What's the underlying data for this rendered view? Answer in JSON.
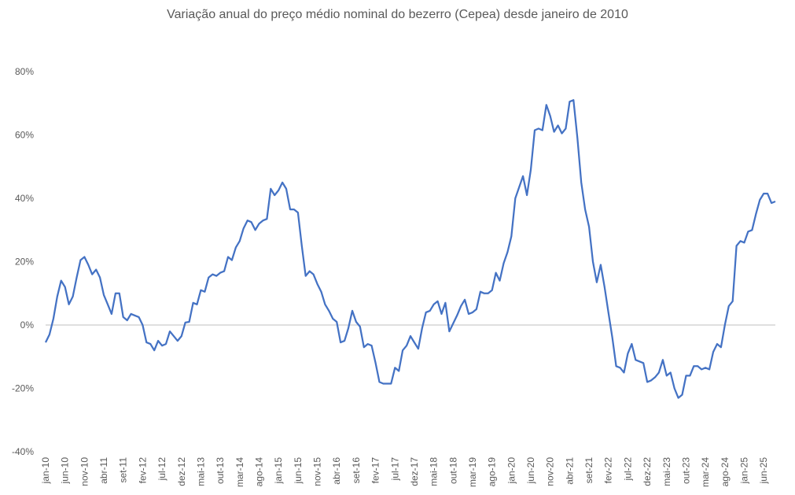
{
  "chart_data": {
    "type": "line",
    "title": "Variação anual do preço médio nominal do bezerro (Cepea) desde janeiro de 2010",
    "xlabel": "",
    "ylabel": "",
    "ylim": [
      -40,
      80
    ],
    "yticks": [
      -40,
      -20,
      0,
      20,
      40,
      60,
      80
    ],
    "ytick_labels": [
      "-40%",
      "-20%",
      "0%",
      "20%",
      "40%",
      "60%",
      "80%"
    ],
    "xtick_labels": [
      "jan-10",
      "jun-10",
      "nov-10",
      "abr-11",
      "set-11",
      "fev-12",
      "jul-12",
      "dez-12",
      "mai-13",
      "out-13",
      "mar-14",
      "ago-14",
      "jan-15",
      "jun-15",
      "nov-15",
      "abr-16",
      "set-16",
      "fev-17",
      "jul-17",
      "dez-17",
      "mai-18",
      "out-18",
      "mar-19",
      "ago-19",
      "jan-20",
      "jun-20",
      "nov-20",
      "abr-21",
      "set-21",
      "fev-22",
      "jul-22",
      "dez-22",
      "mai-23",
      "out-23",
      "mar-24",
      "ago-24",
      "jan-25",
      "jun-25"
    ],
    "grid": false,
    "line_color": "#4472C4",
    "x_start": "jan-10",
    "x_step": "month",
    "series": [
      {
        "values": [
          -5.5,
          -3,
          2,
          9,
          14,
          12,
          6.5,
          9,
          15,
          20.5,
          21.5,
          19,
          16,
          17.5,
          15,
          9.5,
          6.5,
          3.5,
          10,
          10,
          2.5,
          1.5,
          3.5,
          3,
          2.5,
          0,
          -5.5,
          -6,
          -8,
          -5,
          -6.5,
          -6,
          -2,
          -3.5,
          -5,
          -3.5,
          0.8,
          1,
          7,
          6.5,
          11,
          10.5,
          15,
          16,
          15.5,
          16.5,
          17,
          21.5,
          20.5,
          24.5,
          26.5,
          30.5,
          33,
          32.5,
          30,
          32,
          33,
          33.5,
          43,
          41,
          42.5,
          45,
          43,
          36.5,
          36.5,
          35.5,
          25,
          15.5,
          17,
          16,
          13,
          10.5,
          6.5,
          4.5,
          2,
          1,
          -5.5,
          -5,
          -1,
          4.5,
          1,
          -0.5,
          -7,
          -6,
          -6.5,
          -12,
          -18,
          -18.5,
          -18.5,
          -18.5,
          -13.5,
          -14.5,
          -8,
          -6.5,
          -3.5,
          -5.5,
          -7.5,
          -1,
          4,
          4.5,
          6.5,
          7.5,
          3.5,
          7,
          -2,
          0.5,
          3,
          6,
          8,
          3.5,
          4,
          5,
          10.5,
          10,
          10,
          11,
          16.5,
          14,
          19.5,
          23,
          28,
          40,
          43.5,
          47,
          41,
          49,
          61.5,
          62,
          61.5,
          69.5,
          66,
          61,
          63,
          60.5,
          62,
          70.5,
          71,
          59,
          45,
          36.5,
          31,
          20,
          13.5,
          19,
          12,
          4,
          -4,
          -13,
          -13.5,
          -15,
          -9,
          -6,
          -11,
          -11.5,
          -12,
          -18,
          -17.5,
          -16.5,
          -15,
          -11,
          -16,
          -15,
          -20,
          -23,
          -22,
          -16,
          -16,
          -13,
          -13,
          -14,
          -13.5,
          -14,
          -8.5,
          -6,
          -7,
          0,
          6,
          7.5,
          25,
          26.5,
          26,
          29.5,
          30,
          35,
          39.5,
          41.5,
          41.5,
          38.5,
          39
        ]
      }
    ]
  }
}
